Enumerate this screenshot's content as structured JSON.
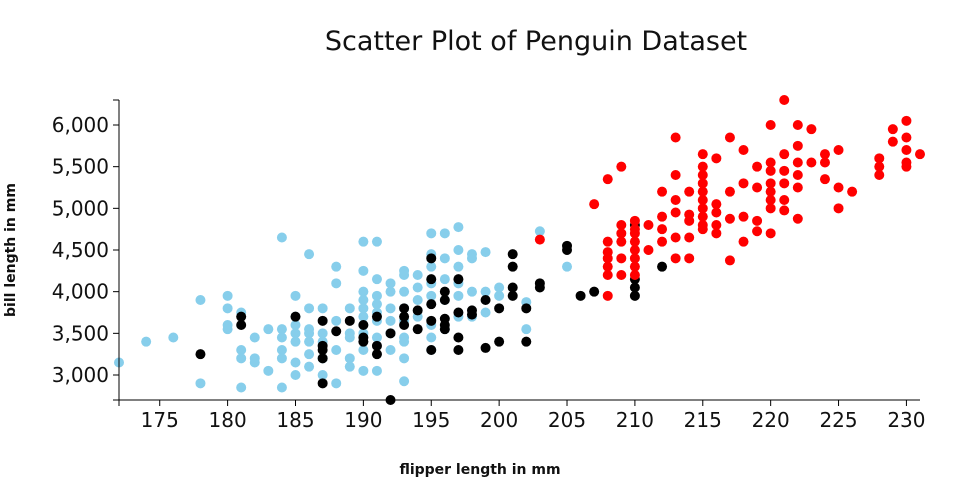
{
  "chart_data": {
    "type": "scatter",
    "title": "Scatter Plot of Penguin Dataset",
    "xlabel": "flipper length in mm",
    "ylabel": "bill length in mm",
    "xlim": [
      172,
      231
    ],
    "ylim": [
      2700,
      6300
    ],
    "xticks": [
      175,
      180,
      185,
      190,
      195,
      200,
      205,
      210,
      215,
      220,
      225,
      230
    ],
    "yticks": [
      3000,
      3500,
      4000,
      4500,
      5000,
      5500,
      6000
    ],
    "xtick_labels": [
      "175",
      "180",
      "185",
      "190",
      "195",
      "200",
      "205",
      "210",
      "215",
      "220",
      "225",
      "230"
    ],
    "ytick_labels": [
      "3,000",
      "3,500",
      "4,000",
      "4,500",
      "5,000",
      "5,500",
      "6,000"
    ],
    "grid": false,
    "series": [
      {
        "color": "#87CEEB",
        "points": [
          [
            172,
            3150
          ],
          [
            174,
            3400
          ],
          [
            176,
            3450
          ],
          [
            178,
            3900
          ],
          [
            178,
            2900
          ],
          [
            180,
            3950
          ],
          [
            180,
            3800
          ],
          [
            180,
            3600
          ],
          [
            180,
            3550
          ],
          [
            181,
            3750
          ],
          [
            181,
            3300
          ],
          [
            181,
            3200
          ],
          [
            181,
            2850
          ],
          [
            182,
            3450
          ],
          [
            182,
            3200
          ],
          [
            182,
            3150
          ],
          [
            183,
            3550
          ],
          [
            183,
            3050
          ],
          [
            184,
            4650
          ],
          [
            184,
            3550
          ],
          [
            184,
            3450
          ],
          [
            184,
            3300
          ],
          [
            184,
            3200
          ],
          [
            184,
            2850
          ],
          [
            185,
            3950
          ],
          [
            185,
            3700
          ],
          [
            185,
            3600
          ],
          [
            185,
            3500
          ],
          [
            185,
            3400
          ],
          [
            185,
            3150
          ],
          [
            185,
            3000
          ],
          [
            186,
            4450
          ],
          [
            186,
            3800
          ],
          [
            186,
            3550
          ],
          [
            186,
            3500
          ],
          [
            186,
            3400
          ],
          [
            186,
            3250
          ],
          [
            186,
            3100
          ],
          [
            187,
            3800
          ],
          [
            187,
            3500
          ],
          [
            187,
            3400
          ],
          [
            187,
            3200
          ],
          [
            187,
            3000
          ],
          [
            188,
            4300
          ],
          [
            188,
            4100
          ],
          [
            188,
            3650
          ],
          [
            188,
            3300
          ],
          [
            188,
            2900
          ],
          [
            189,
            3800
          ],
          [
            189,
            3500
          ],
          [
            189,
            3450
          ],
          [
            189,
            3200
          ],
          [
            189,
            3100
          ],
          [
            190,
            4600
          ],
          [
            190,
            4250
          ],
          [
            190,
            4000
          ],
          [
            190,
            3900
          ],
          [
            190,
            3800
          ],
          [
            190,
            3700
          ],
          [
            190,
            3600
          ],
          [
            190,
            3500
          ],
          [
            190,
            3300
          ],
          [
            190,
            3050
          ],
          [
            191,
            4600
          ],
          [
            191,
            4150
          ],
          [
            191,
            3950
          ],
          [
            191,
            3850
          ],
          [
            191,
            3750
          ],
          [
            191,
            3650
          ],
          [
            191,
            3450
          ],
          [
            191,
            3050
          ],
          [
            192,
            4100
          ],
          [
            192,
            4000
          ],
          [
            192,
            3800
          ],
          [
            192,
            3650
          ],
          [
            192,
            3500
          ],
          [
            192,
            3300
          ],
          [
            193,
            4250
          ],
          [
            193,
            4200
          ],
          [
            193,
            4000
          ],
          [
            193,
            3800
          ],
          [
            193,
            3650
          ],
          [
            193,
            3450
          ],
          [
            193,
            3400
          ],
          [
            193,
            3200
          ],
          [
            193,
            2925
          ],
          [
            194,
            4200
          ],
          [
            194,
            4050
          ],
          [
            194,
            3900
          ],
          [
            194,
            3700
          ],
          [
            195,
            4700
          ],
          [
            195,
            4450
          ],
          [
            195,
            4300
          ],
          [
            195,
            4100
          ],
          [
            195,
            3950
          ],
          [
            195,
            3600
          ],
          [
            195,
            3450
          ],
          [
            195,
            3300
          ],
          [
            196,
            4700
          ],
          [
            196,
            4400
          ],
          [
            196,
            4150
          ],
          [
            196,
            3900
          ],
          [
            196,
            3550
          ],
          [
            197,
            4775
          ],
          [
            197,
            4500
          ],
          [
            197,
            4300
          ],
          [
            197,
            4100
          ],
          [
            197,
            3950
          ],
          [
            197,
            3700
          ],
          [
            198,
            4450
          ],
          [
            198,
            4400
          ],
          [
            198,
            4000
          ],
          [
            198,
            3700
          ],
          [
            199,
            4475
          ],
          [
            199,
            4000
          ],
          [
            199,
            3750
          ],
          [
            200,
            4050
          ],
          [
            200,
            3950
          ],
          [
            202,
            3875
          ],
          [
            202,
            3550
          ],
          [
            203,
            4725
          ],
          [
            205,
            4300
          ]
        ]
      },
      {
        "color": "#000000",
        "points": [
          [
            178,
            3250
          ],
          [
            181,
            3700
          ],
          [
            181,
            3600
          ],
          [
            185,
            3700
          ],
          [
            187,
            3650
          ],
          [
            187,
            3350
          ],
          [
            187,
            3300
          ],
          [
            187,
            3200
          ],
          [
            187,
            2900
          ],
          [
            188,
            3525
          ],
          [
            189,
            3650
          ],
          [
            190,
            3600
          ],
          [
            190,
            3450
          ],
          [
            190,
            3400
          ],
          [
            191,
            3700
          ],
          [
            191,
            3350
          ],
          [
            191,
            3250
          ],
          [
            192,
            2700
          ],
          [
            192,
            3500
          ],
          [
            193,
            3800
          ],
          [
            193,
            3700
          ],
          [
            193,
            3600
          ],
          [
            194,
            3775
          ],
          [
            194,
            3550
          ],
          [
            195,
            4400
          ],
          [
            195,
            4150
          ],
          [
            195,
            3850
          ],
          [
            195,
            3650
          ],
          [
            195,
            3300
          ],
          [
            196,
            4000
          ],
          [
            196,
            3900
          ],
          [
            196,
            3675
          ],
          [
            196,
            3600
          ],
          [
            196,
            3550
          ],
          [
            197,
            4150
          ],
          [
            197,
            3750
          ],
          [
            197,
            3450
          ],
          [
            197,
            3300
          ],
          [
            198,
            3775
          ],
          [
            198,
            3725
          ],
          [
            199,
            3900
          ],
          [
            199,
            3325
          ],
          [
            200,
            3800
          ],
          [
            200,
            3400
          ],
          [
            201,
            4450
          ],
          [
            201,
            4300
          ],
          [
            201,
            4050
          ],
          [
            201,
            3950
          ],
          [
            202,
            3800
          ],
          [
            202,
            3400
          ],
          [
            203,
            4100
          ],
          [
            203,
            4050
          ],
          [
            205,
            4550
          ],
          [
            205,
            4500
          ],
          [
            206,
            3950
          ],
          [
            207,
            4000
          ],
          [
            210,
            4800
          ],
          [
            210,
            4150
          ],
          [
            210,
            4050
          ],
          [
            210,
            3950
          ],
          [
            212,
            4300
          ]
        ]
      },
      {
        "color": "#FF0000",
        "points": [
          [
            203,
            4625
          ],
          [
            207,
            5050
          ],
          [
            208,
            5350
          ],
          [
            208,
            4600
          ],
          [
            208,
            4475
          ],
          [
            208,
            4400
          ],
          [
            208,
            4300
          ],
          [
            208,
            4200
          ],
          [
            208,
            3950
          ],
          [
            209,
            5500
          ],
          [
            209,
            4800
          ],
          [
            209,
            4700
          ],
          [
            209,
            4600
          ],
          [
            209,
            4400
          ],
          [
            209,
            4200
          ],
          [
            210,
            4850
          ],
          [
            210,
            4750
          ],
          [
            210,
            4700
          ],
          [
            210,
            4600
          ],
          [
            210,
            4500
          ],
          [
            210,
            4400
          ],
          [
            210,
            4300
          ],
          [
            210,
            4200
          ],
          [
            211,
            4800
          ],
          [
            211,
            4500
          ],
          [
            212,
            5200
          ],
          [
            212,
            4900
          ],
          [
            212,
            4750
          ],
          [
            212,
            4600
          ],
          [
            213,
            5850
          ],
          [
            213,
            5400
          ],
          [
            213,
            5100
          ],
          [
            213,
            4950
          ],
          [
            213,
            4650
          ],
          [
            213,
            4400
          ],
          [
            214,
            5200
          ],
          [
            214,
            4925
          ],
          [
            214,
            4850
          ],
          [
            214,
            4650
          ],
          [
            214,
            4400
          ],
          [
            215,
            5650
          ],
          [
            215,
            5500
          ],
          [
            215,
            5400
          ],
          [
            215,
            5300
          ],
          [
            215,
            5200
          ],
          [
            215,
            5100
          ],
          [
            215,
            5000
          ],
          [
            215,
            4900
          ],
          [
            215,
            4800
          ],
          [
            215,
            4750
          ],
          [
            216,
            5600
          ],
          [
            216,
            5050
          ],
          [
            216,
            4950
          ],
          [
            216,
            4800
          ],
          [
            216,
            4700
          ],
          [
            217,
            5850
          ],
          [
            217,
            5200
          ],
          [
            217,
            4875
          ],
          [
            217,
            4375
          ],
          [
            218,
            5700
          ],
          [
            218,
            5300
          ],
          [
            218,
            4900
          ],
          [
            218,
            4600
          ],
          [
            219,
            5500
          ],
          [
            219,
            5250
          ],
          [
            219,
            4850
          ],
          [
            219,
            4725
          ],
          [
            220,
            6000
          ],
          [
            220,
            5550
          ],
          [
            220,
            5450
          ],
          [
            220,
            5300
          ],
          [
            220,
            5200
          ],
          [
            220,
            5100
          ],
          [
            220,
            5000
          ],
          [
            220,
            4700
          ],
          [
            221,
            6300
          ],
          [
            221,
            5650
          ],
          [
            221,
            5450
          ],
          [
            221,
            5300
          ],
          [
            221,
            5100
          ],
          [
            221,
            4975
          ],
          [
            222,
            6000
          ],
          [
            222,
            5750
          ],
          [
            222,
            5550
          ],
          [
            222,
            5400
          ],
          [
            222,
            5250
          ],
          [
            222,
            4875
          ],
          [
            223,
            5950
          ],
          [
            223,
            5550
          ],
          [
            224,
            5650
          ],
          [
            224,
            5550
          ],
          [
            224,
            5350
          ],
          [
            225,
            5700
          ],
          [
            225,
            5250
          ],
          [
            225,
            5000
          ],
          [
            226,
            5200
          ],
          [
            228,
            5600
          ],
          [
            228,
            5500
          ],
          [
            228,
            5400
          ],
          [
            229,
            5950
          ],
          [
            229,
            5800
          ],
          [
            230,
            6050
          ],
          [
            230,
            5850
          ],
          [
            230,
            5700
          ],
          [
            230,
            5550
          ],
          [
            230,
            5500
          ],
          [
            231,
            5650
          ]
        ]
      }
    ]
  }
}
